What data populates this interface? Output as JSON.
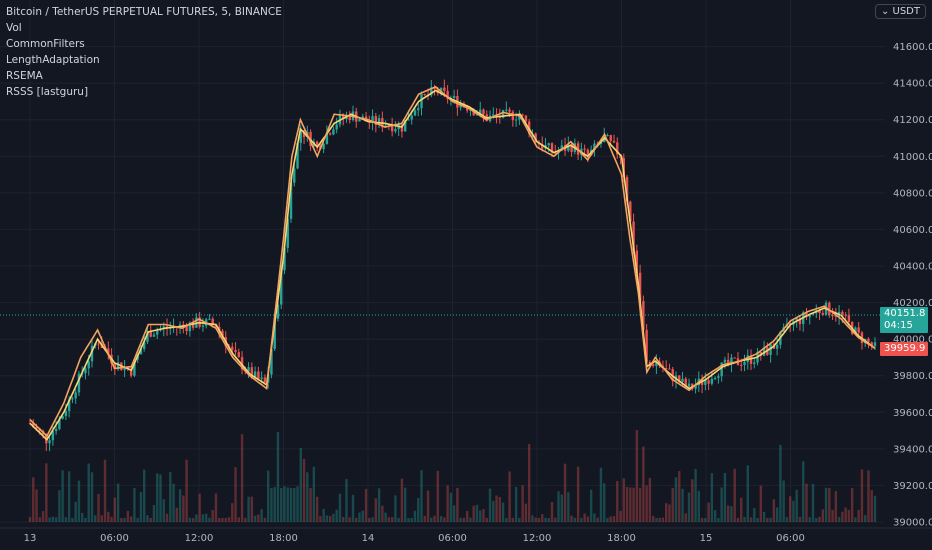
{
  "legend": {
    "symbol": "Bitcoin / TetherUS PERPETUAL FUTURES, 5, BINANCE",
    "indicators": [
      "Vol",
      "CommonFilters",
      "LengthAdaptation",
      "RSEMA",
      "RSSS [lastguru]"
    ]
  },
  "currency_label": "USDT",
  "price_tags": {
    "last_price": "40151.8",
    "countdown": "04:15",
    "indicator_price": "39959.9"
  },
  "colors": {
    "background": "#131722",
    "up": "#26a69a",
    "down": "#ef5350",
    "ma_yellow": "#f7d774",
    "ma_orange": "#f4a460",
    "grid": "#1e222d"
  },
  "chart_data": {
    "type": "line",
    "title": "Bitcoin / TetherUS PERPETUAL FUTURES, 5, BINANCE",
    "xlabel": "",
    "ylabel": "",
    "ylim": [
      39000,
      41800
    ],
    "y_ticks": [
      39000,
      39200,
      39400,
      39600,
      39800,
      40000,
      40200,
      40400,
      40600,
      40800,
      41000,
      41200,
      41400,
      41600
    ],
    "y_tick_labels": [
      "39000.0",
      "39200.0",
      "39400.0",
      "39600.0",
      "39800.0",
      "40000.0",
      "40200.0",
      "40400.0",
      "40600.0",
      "40800.0",
      "41000.0",
      "41200.0",
      "41400.0",
      "41600.0"
    ],
    "x_ticks": [
      {
        "label": "13",
        "t": 0.0
      },
      {
        "label": "06:00",
        "t": 0.1
      },
      {
        "label": "12:00",
        "t": 0.2
      },
      {
        "label": "18:00",
        "t": 0.3
      },
      {
        "label": "14",
        "t": 0.4
      },
      {
        "label": "06:00",
        "t": 0.5
      },
      {
        "label": "12:00",
        "t": 0.6
      },
      {
        "label": "18:00",
        "t": 0.7
      },
      {
        "label": "15",
        "t": 0.8
      },
      {
        "label": "06:00",
        "t": 0.9
      }
    ],
    "series": [
      {
        "name": "RSEMA",
        "color": "#f7d774",
        "x": [
          0.0,
          0.02,
          0.04,
          0.06,
          0.08,
          0.1,
          0.12,
          0.14,
          0.16,
          0.18,
          0.2,
          0.22,
          0.24,
          0.26,
          0.28,
          0.3,
          0.31,
          0.32,
          0.34,
          0.36,
          0.38,
          0.4,
          0.42,
          0.44,
          0.46,
          0.48,
          0.5,
          0.52,
          0.54,
          0.56,
          0.58,
          0.6,
          0.62,
          0.64,
          0.66,
          0.68,
          0.7,
          0.71,
          0.72,
          0.73,
          0.74,
          0.76,
          0.78,
          0.8,
          0.82,
          0.84,
          0.86,
          0.88,
          0.9,
          0.92,
          0.94,
          0.96,
          0.98,
          1.0
        ],
        "values": [
          39540,
          39450,
          39600,
          39800,
          40000,
          39870,
          39830,
          40040,
          40060,
          40070,
          40090,
          40080,
          39920,
          39810,
          39750,
          40450,
          40900,
          41150,
          41050,
          41180,
          41230,
          41190,
          41180,
          41160,
          41300,
          41360,
          41310,
          41270,
          41210,
          41220,
          41230,
          41080,
          41020,
          41060,
          41000,
          41100,
          41000,
          40650,
          40300,
          39850,
          39880,
          39800,
          39730,
          39780,
          39850,
          39880,
          39900,
          39960,
          40080,
          40130,
          40170,
          40130,
          40020,
          39950
        ]
      },
      {
        "name": "RSSS [lastguru]",
        "color": "#f4a460",
        "x": [
          0.0,
          0.02,
          0.04,
          0.06,
          0.08,
          0.1,
          0.12,
          0.14,
          0.16,
          0.18,
          0.2,
          0.22,
          0.24,
          0.26,
          0.28,
          0.3,
          0.31,
          0.32,
          0.34,
          0.36,
          0.38,
          0.4,
          0.42,
          0.44,
          0.46,
          0.48,
          0.5,
          0.52,
          0.54,
          0.56,
          0.58,
          0.6,
          0.62,
          0.64,
          0.66,
          0.68,
          0.7,
          0.71,
          0.72,
          0.73,
          0.74,
          0.76,
          0.78,
          0.8,
          0.82,
          0.84,
          0.86,
          0.88,
          0.9,
          0.92,
          0.94,
          0.96,
          0.98,
          1.0
        ],
        "values": [
          39560,
          39470,
          39650,
          39900,
          40050,
          39840,
          39850,
          40080,
          40080,
          40060,
          40110,
          40060,
          39900,
          39800,
          39730,
          40550,
          41000,
          41200,
          41000,
          41230,
          41220,
          41200,
          41160,
          41180,
          41340,
          41380,
          41300,
          41260,
          41200,
          41240,
          41220,
          41050,
          41000,
          41080,
          40980,
          41120,
          40900,
          40550,
          40250,
          39820,
          39900,
          39780,
          39720,
          39800,
          39860,
          39880,
          39920,
          39990,
          40100,
          40150,
          40180,
          40110,
          40010,
          39950
        ]
      }
    ],
    "volume_note": "volume histogram shown at bottom"
  }
}
